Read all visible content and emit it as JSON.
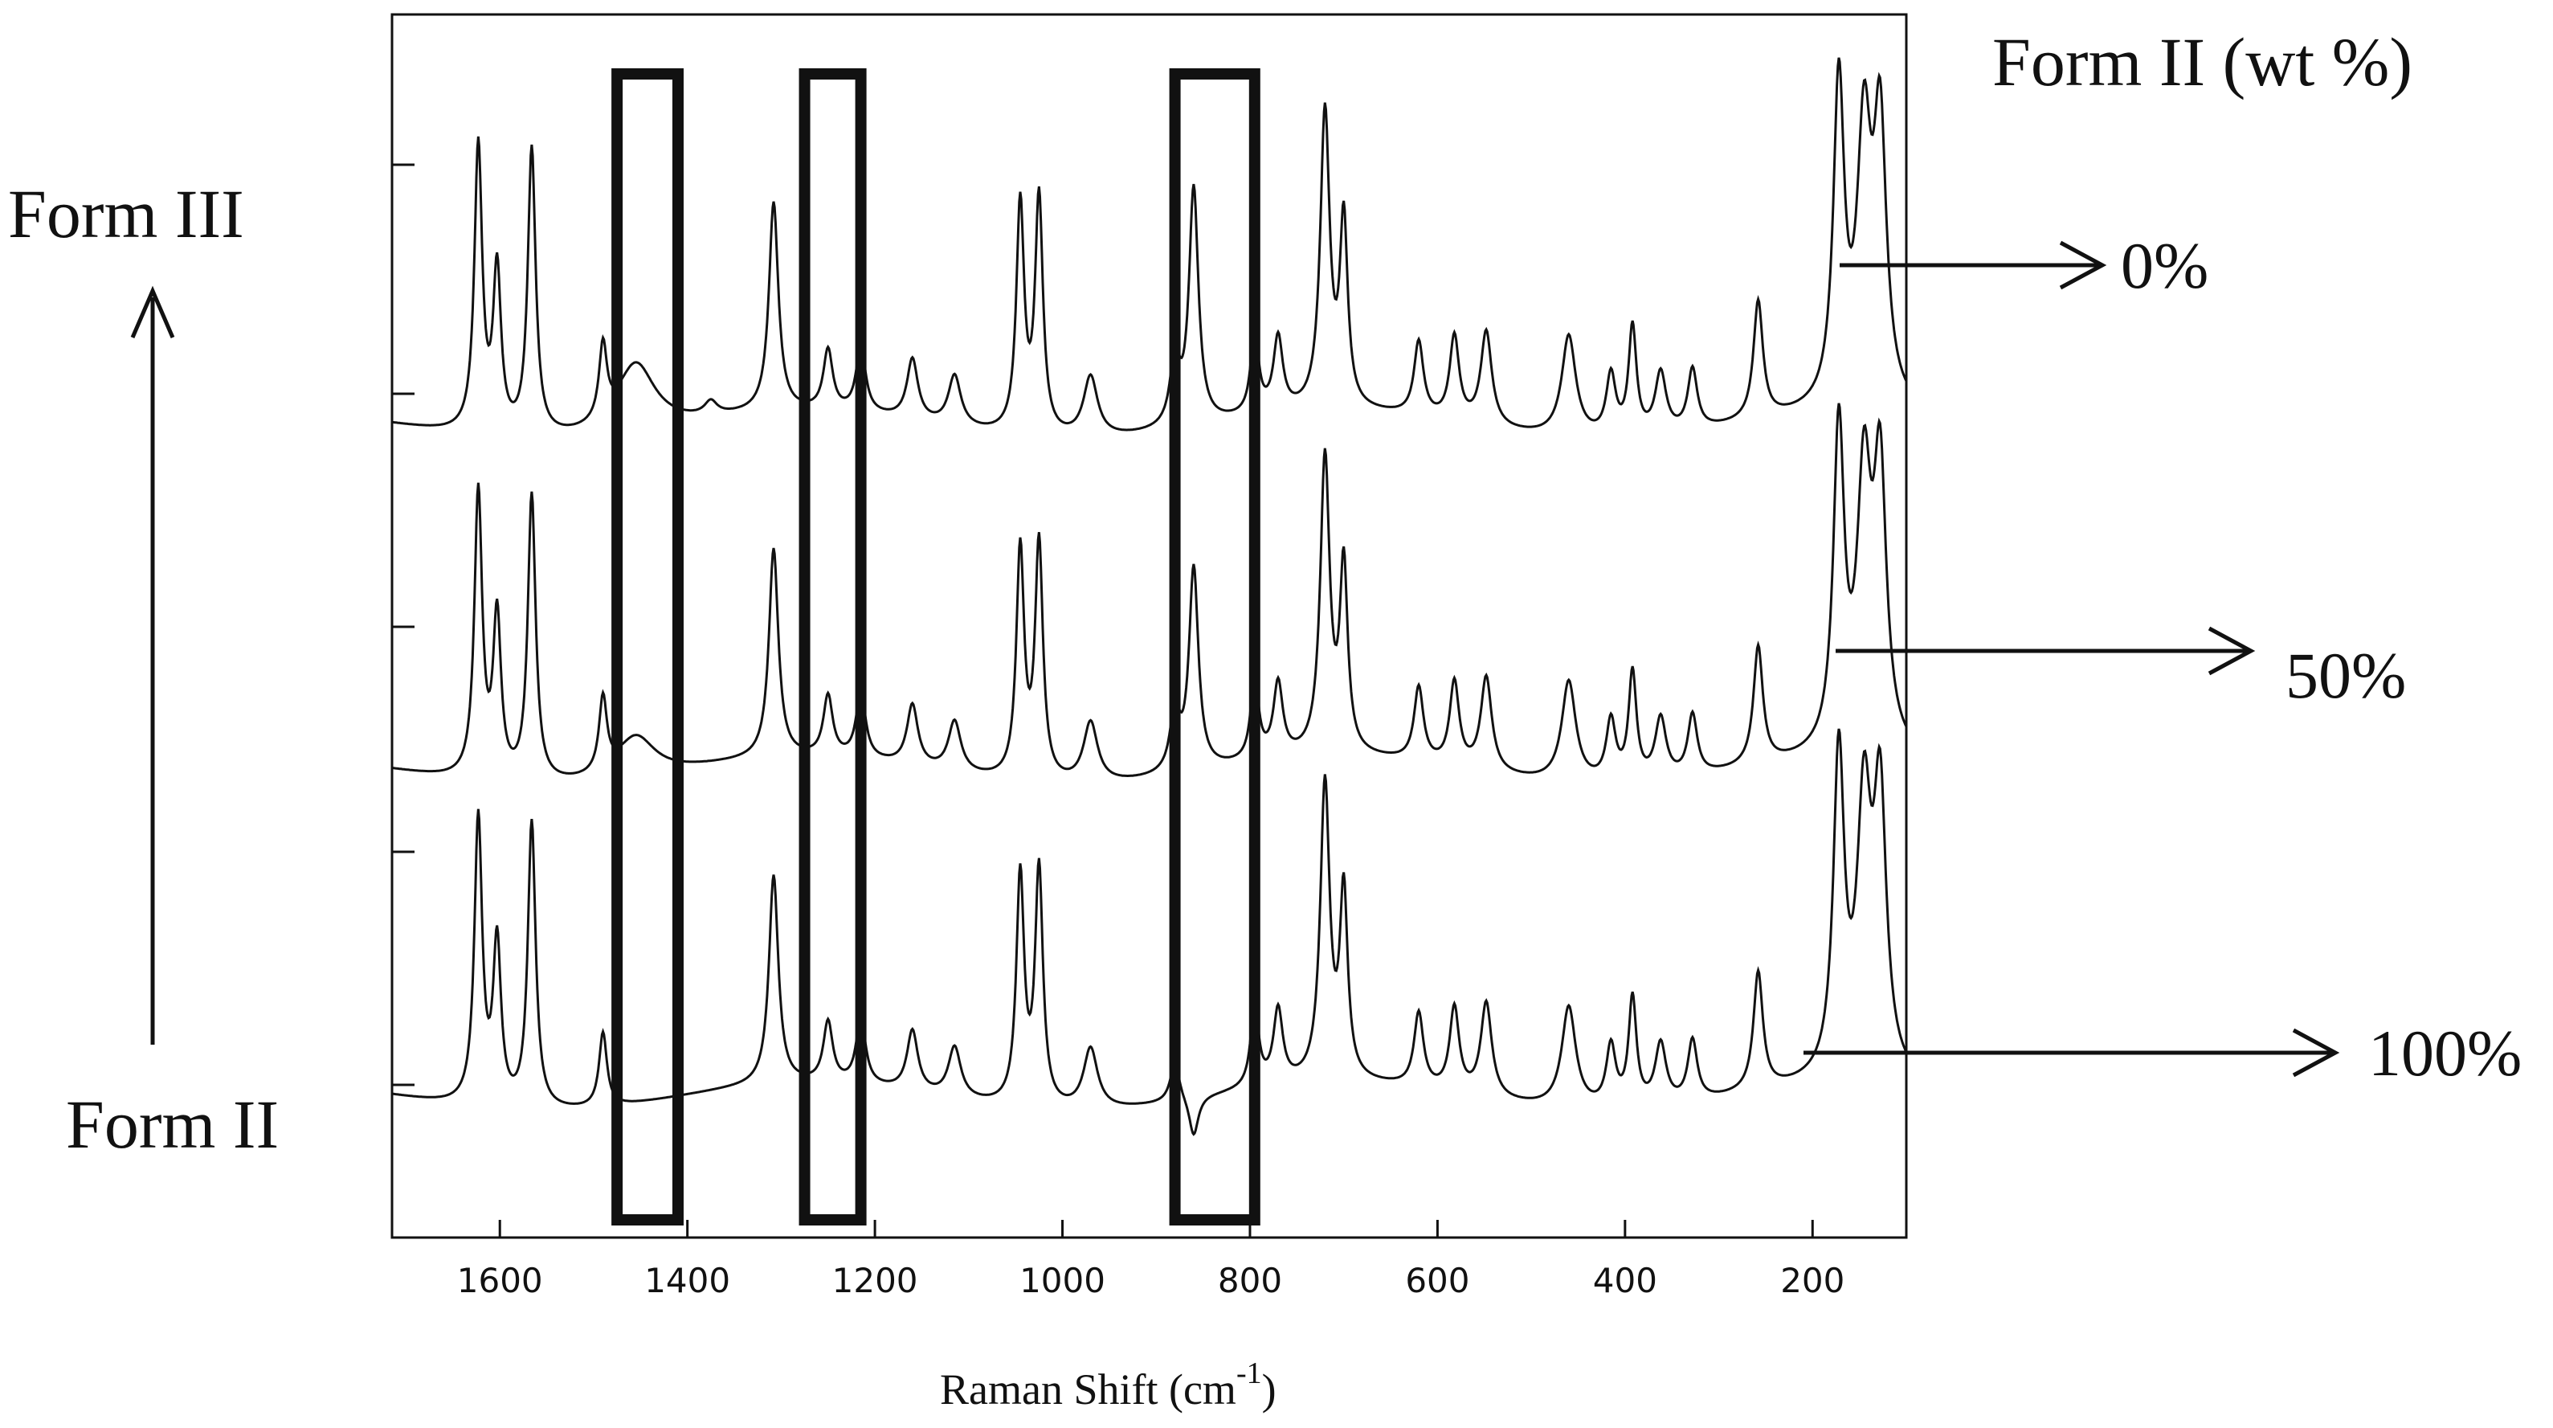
{
  "chart_data": {
    "type": "line",
    "xlabel": "Raman Shift (cm",
    "xlabel_sup": "-1",
    "xlabel_close": ")",
    "x_ticks": [
      1600,
      1400,
      1200,
      1000,
      800,
      600,
      400,
      200
    ],
    "xlim": [
      1715,
      100
    ],
    "x_reversed": true,
    "legend_title": "Form II (wt %)",
    "left_labels": {
      "top": "Form III",
      "bottom": "Form II"
    },
    "grid": false,
    "peaks": [
      {
        "x": 1623,
        "h": 0.85,
        "w": 5
      },
      {
        "x": 1603,
        "h": 0.48,
        "w": 5
      },
      {
        "x": 1566,
        "h": 0.85,
        "w": 5
      },
      {
        "x": 1490,
        "h": 0.22,
        "w": 5
      },
      {
        "x": 1308,
        "h": 0.62,
        "w": 6
      },
      {
        "x": 1250,
        "h": 0.18,
        "w": 6
      },
      {
        "x": 1215,
        "h": 0.2,
        "w": 6
      },
      {
        "x": 1160,
        "h": 0.18,
        "w": 7
      },
      {
        "x": 1115,
        "h": 0.15,
        "w": 8
      },
      {
        "x": 1045,
        "h": 0.68,
        "w": 5
      },
      {
        "x": 1025,
        "h": 0.7,
        "w": 5
      },
      {
        "x": 970,
        "h": 0.18,
        "w": 9
      },
      {
        "x": 795,
        "h": 0.25,
        "w": 5
      },
      {
        "x": 770,
        "h": 0.22,
        "w": 6
      },
      {
        "x": 720,
        "h": 0.88,
        "w": 6
      },
      {
        "x": 700,
        "h": 0.55,
        "w": 5
      },
      {
        "x": 620,
        "h": 0.22,
        "w": 6
      },
      {
        "x": 582,
        "h": 0.25,
        "w": 6
      },
      {
        "x": 548,
        "h": 0.28,
        "w": 7
      },
      {
        "x": 460,
        "h": 0.3,
        "w": 9
      },
      {
        "x": 415,
        "h": 0.18,
        "w": 6
      },
      {
        "x": 392,
        "h": 0.32,
        "w": 5
      },
      {
        "x": 362,
        "h": 0.18,
        "w": 7
      },
      {
        "x": 328,
        "h": 0.18,
        "w": 6
      },
      {
        "x": 258,
        "h": 0.35,
        "w": 6
      },
      {
        "x": 172,
        "h": 0.95,
        "w": 7
      },
      {
        "x": 145,
        "h": 0.78,
        "w": 9
      },
      {
        "x": 128,
        "h": 0.8,
        "w": 8
      }
    ],
    "series": [
      {
        "name": "0%",
        "extra_peaks": [
          {
            "x": 1455,
            "h": 0.2,
            "w": 25
          },
          {
            "x": 1375,
            "h": 0.04,
            "w": 8
          },
          {
            "x": 860,
            "h": 0.7,
            "w": 6
          },
          {
            "x": 880,
            "h": 0.2,
            "w": 6
          }
        ]
      },
      {
        "name": "50%",
        "extra_peaks": [
          {
            "x": 1455,
            "h": 0.12,
            "w": 25
          },
          {
            "x": 860,
            "h": 0.6,
            "w": 6
          },
          {
            "x": 880,
            "h": 0.18,
            "w": 6
          }
        ]
      },
      {
        "name": "100%",
        "extra_peaks": [
          {
            "x": 880,
            "h": 0.12,
            "w": 6
          },
          {
            "x": 860,
            "h": -0.12,
            "w": 6
          }
        ]
      }
    ],
    "highlight_regions": [
      [
        1475,
        1410
      ],
      [
        1275,
        1215
      ],
      [
        880,
        795
      ]
    ]
  }
}
